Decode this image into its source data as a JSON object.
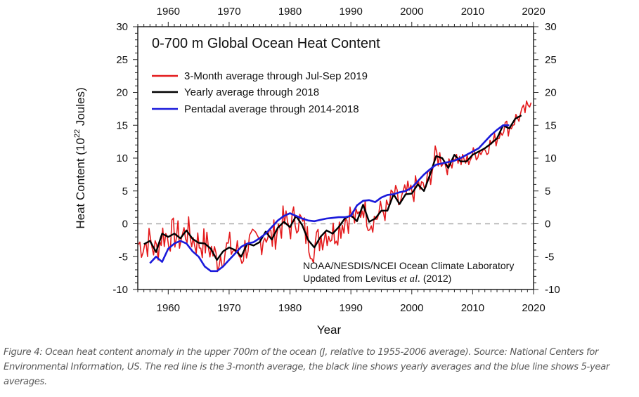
{
  "chart_data": {
    "type": "line",
    "title": "0-700 m Global Ocean Heat Content",
    "xlabel": "Year",
    "ylabel": "Heat Content (10^22 Joules)",
    "ylabel_parts": {
      "main": "Heat Content (10",
      "sup": "22",
      "tail": " Joules)"
    },
    "xlim": [
      1955,
      2020
    ],
    "ylim": [
      -10,
      30
    ],
    "x_ticks": [
      1960,
      1970,
      1980,
      1990,
      2000,
      2010,
      2020
    ],
    "y_ticks": [
      -10,
      -5,
      0,
      5,
      10,
      15,
      20,
      25,
      30
    ],
    "x_tick_labels": [
      "1960",
      "1970",
      "1980",
      "1990",
      "2000",
      "2010",
      "2020"
    ],
    "y_tick_labels": [
      "-10",
      "-5",
      "0",
      "5",
      "10",
      "15",
      "20",
      "25",
      "30"
    ],
    "reference_line": {
      "y": 0,
      "style": "dashed",
      "color": "#aaaaaa"
    },
    "legend_position": "top-left",
    "annotation": {
      "line1": "NOAA/NESDIS/NCEI Ocean Climate Laboratory",
      "line2_prefix": "Updated from Levitus ",
      "line2_italic": "et al.",
      "line2_suffix": " (2012)"
    },
    "series": [
      {
        "name": "3-Month average through Jul-Sep 2019",
        "color": "#e41a1c",
        "kind": "quarterly",
        "note": "quarterly values derived around yearly series",
        "x": [],
        "values": []
      },
      {
        "name": "Yearly average through 2018",
        "color": "#000000",
        "x": [
          1956,
          1957,
          1958,
          1959,
          1960,
          1961,
          1962,
          1963,
          1964,
          1965,
          1966,
          1967,
          1968,
          1969,
          1970,
          1971,
          1972,
          1973,
          1974,
          1975,
          1976,
          1977,
          1978,
          1979,
          1980,
          1981,
          1982,
          1983,
          1984,
          1985,
          1986,
          1987,
          1988,
          1989,
          1990,
          1991,
          1992,
          1993,
          1994,
          1995,
          1996,
          1997,
          1998,
          1999,
          2000,
          2001,
          2002,
          2003,
          2004,
          2005,
          2006,
          2007,
          2008,
          2009,
          2010,
          2011,
          2012,
          2013,
          2014,
          2015,
          2016,
          2017,
          2018
        ],
        "values": [
          -3.1,
          -2.6,
          -4.3,
          -1.5,
          -2.0,
          -1.5,
          -2.2,
          -1.0,
          -2.3,
          -2.9,
          -3.0,
          -3.8,
          -5.5,
          -4.2,
          -3.6,
          -4.0,
          -5.0,
          -3.0,
          -3.3,
          -2.8,
          -1.2,
          -2.4,
          -0.6,
          0.3,
          -0.5,
          1.2,
          -0.2,
          -2.5,
          -3.6,
          -2.0,
          -1.0,
          -1.5,
          -0.5,
          0.8,
          1.3,
          0.4,
          2.9,
          0.3,
          0.8,
          2.0,
          2.0,
          4.5,
          3.0,
          4.5,
          4.6,
          6.0,
          5.0,
          7.5,
          10.3,
          10.0,
          8.5,
          10.5,
          9.5,
          9.5,
          10.5,
          11.0,
          11.5,
          12.2,
          13.0,
          15.0,
          14.5,
          16.0,
          16.5
        ]
      },
      {
        "name": "Pentadal average through 2014-2018",
        "color": "#1a1adb",
        "x": [
          1957,
          1958,
          1959,
          1960,
          1961,
          1962,
          1963,
          1964,
          1965,
          1966,
          1967,
          1968,
          1969,
          1970,
          1971,
          1972,
          1973,
          1974,
          1975,
          1976,
          1977,
          1978,
          1979,
          1980,
          1981,
          1982,
          1983,
          1984,
          1985,
          1986,
          1987,
          1988,
          1989,
          1990,
          1991,
          1992,
          1993,
          1994,
          1995,
          1996,
          1997,
          1998,
          1999,
          2000,
          2001,
          2002,
          2003,
          2004,
          2005,
          2006,
          2007,
          2008,
          2009,
          2010,
          2011,
          2012,
          2013,
          2014,
          2015,
          2016
        ],
        "values": [
          -6.0,
          -5.0,
          -5.8,
          -3.8,
          -3.0,
          -2.6,
          -3.0,
          -4.2,
          -5.0,
          -6.5,
          -7.2,
          -7.2,
          -6.5,
          -5.5,
          -4.5,
          -3.5,
          -3.0,
          -2.8,
          -2.2,
          -1.5,
          -0.5,
          0.5,
          1.2,
          1.6,
          1.2,
          0.8,
          0.5,
          0.4,
          0.6,
          0.8,
          0.9,
          1.0,
          1.0,
          1.2,
          2.8,
          3.5,
          3.6,
          3.3,
          4.0,
          4.4,
          4.5,
          4.8,
          5.0,
          5.5,
          6.5,
          7.5,
          8.3,
          9.0,
          9.2,
          9.4,
          9.6,
          10.0,
          10.5,
          11.0,
          11.5,
          12.5,
          13.5,
          14.3,
          15.0,
          15.0
        ]
      }
    ]
  },
  "caption": "Figure 4: Ocean heat content anomaly in the upper 700m of the ocean (J, relative to 1955-2006 average). Source: National Centers for Environmental Information, US. The red line is the 3-month average, the black line shows yearly averages and the blue line shows 5-year averages."
}
